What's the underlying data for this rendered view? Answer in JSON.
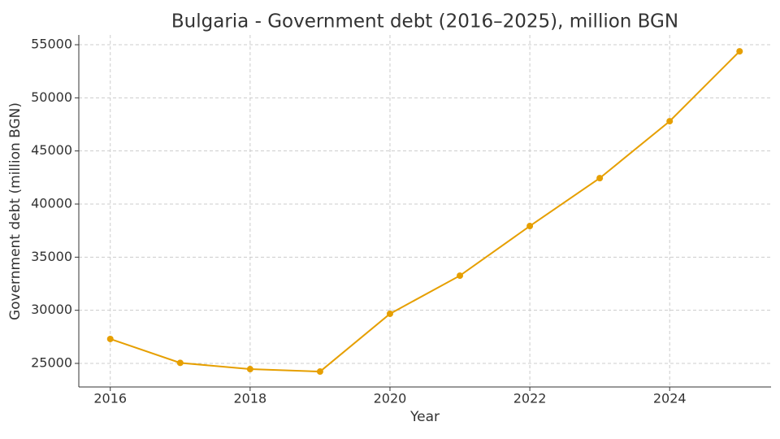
{
  "chart_data": {
    "type": "line",
    "title": "Bulgaria - Government debt (2016–2025), million BGN",
    "x_label": "Year",
    "y_label": "Government debt (million BGN)",
    "x": [
      2016,
      2017,
      2018,
      2019,
      2020,
      2021,
      2022,
      2023,
      2024,
      2025
    ],
    "series": [
      {
        "name": "Government debt",
        "color": "#e69f00",
        "values": [
          27300,
          25050,
          24460,
          24230,
          29670,
          33260,
          37930,
          42440,
          47800,
          54380
        ]
      }
    ],
    "xlim": [
      2015.55,
      2025.45
    ],
    "xticks": [
      2016,
      2018,
      2020,
      2022,
      2024
    ],
    "ylim": [
      22780,
      55920
    ],
    "yticks": [
      25000,
      30000,
      35000,
      40000,
      45000,
      50000,
      55000
    ],
    "grid": true
  }
}
